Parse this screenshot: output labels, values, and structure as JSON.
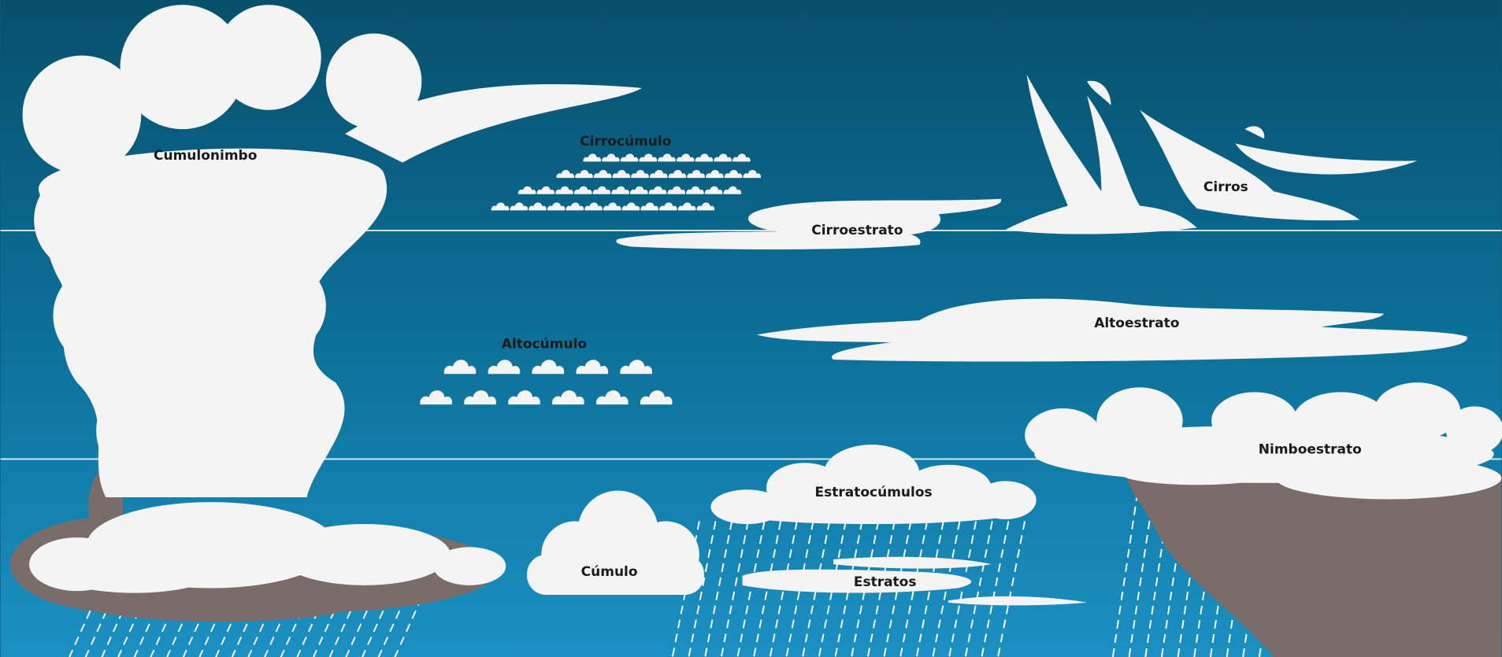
{
  "clouds": [
    {
      "label": "Cumulonimbo"
    },
    {
      "label": "Cirrocúmulo"
    },
    {
      "label": "Cirroestrato"
    },
    {
      "label": "Cirros"
    },
    {
      "label": "Altocúmulo"
    },
    {
      "label": "Altoestrato"
    },
    {
      "label": "Nimboestrato"
    },
    {
      "label": "Estratocúmulos"
    },
    {
      "label": "Cúmulo"
    },
    {
      "label": "Estratos"
    }
  ]
}
